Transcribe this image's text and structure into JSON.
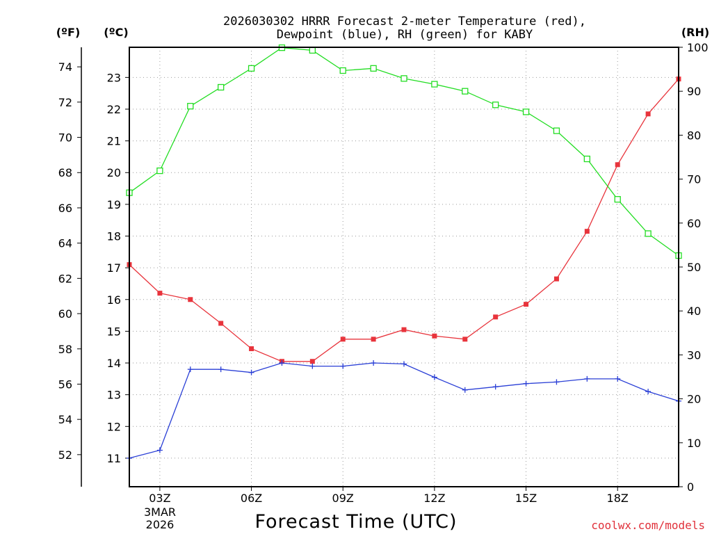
{
  "chart_data": {
    "type": "line",
    "title_line1": "2026030302 HRRR Forecast 2-meter Temperature (red),",
    "title_line2": "Dewpoint (blue), RH (green) for KABY",
    "xlabel": "Forecast Time (UTC)",
    "credit": "coolwx.com/models",
    "unit_labels": {
      "f": "(ºF)",
      "c": "(ºC)",
      "rh": "(RH)"
    },
    "date_label": {
      "day": "3MAR",
      "year": "2026"
    },
    "x_ticks": [
      "03Z",
      "06Z",
      "09Z",
      "12Z",
      "15Z",
      "18Z"
    ],
    "x_tick_hours": [
      3,
      6,
      9,
      12,
      15,
      18
    ],
    "x_range_hours": [
      2,
      20
    ],
    "c_axis": {
      "range": [
        10.1,
        23.95
      ],
      "ticks": [
        "11",
        "12",
        "13",
        "14",
        "15",
        "16",
        "17",
        "18",
        "19",
        "20",
        "21",
        "22",
        "23"
      ]
    },
    "f_axis": {
      "ticks": [
        "52",
        "54",
        "56",
        "58",
        "60",
        "62",
        "64",
        "66",
        "68",
        "70",
        "72",
        "74"
      ]
    },
    "rh_axis": {
      "range": [
        0,
        100
      ],
      "ticks": [
        "0",
        "10",
        "20",
        "30",
        "40",
        "50",
        "60",
        "70",
        "80",
        "90",
        "100"
      ]
    },
    "colors": {
      "temperature": "#e8343c",
      "dewpoint": "#2a3fd6",
      "rh": "#22dd22",
      "frame": "#000000"
    },
    "hours": [
      2,
      3,
      4,
      5,
      6,
      7,
      8,
      9,
      10,
      11,
      12,
      13,
      14,
      15,
      16,
      17,
      18,
      19,
      20
    ],
    "series": [
      {
        "name": "Temperature (°C)",
        "key": "temperature",
        "axis": "c",
        "values": [
          17.1,
          16.2,
          16.0,
          15.25,
          14.45,
          14.05,
          14.05,
          14.75,
          14.75,
          15.05,
          14.85,
          14.75,
          15.45,
          15.85,
          16.65,
          18.15,
          20.25,
          21.85,
          22.95
        ]
      },
      {
        "name": "Dewpoint (°C)",
        "key": "dewpoint",
        "axis": "c",
        "values": [
          11.0,
          11.25,
          13.8,
          13.8,
          13.7,
          14.0,
          13.9,
          13.9,
          14.0,
          13.97,
          13.55,
          13.15,
          13.25,
          13.35,
          13.4,
          13.5,
          13.5,
          13.1,
          12.8
        ]
      },
      {
        "name": "RH (%)",
        "key": "rh",
        "axis": "rh",
        "values": [
          66.9,
          71.9,
          86.6,
          90.9,
          95.2,
          99.9,
          99.3,
          94.7,
          95.2,
          92.9,
          91.6,
          90.0,
          86.9,
          85.3,
          81.0,
          74.6,
          65.4,
          57.6,
          52.6
        ]
      }
    ]
  }
}
